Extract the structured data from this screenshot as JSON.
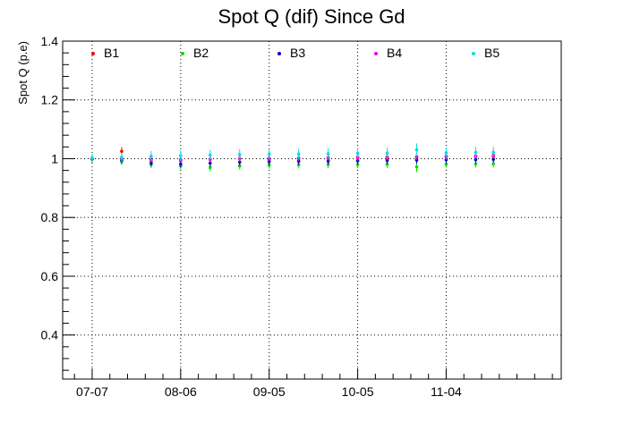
{
  "chart_data": {
    "type": "scatter",
    "title": "Spot Q (dif) Since Gd",
    "xlabel": "",
    "ylabel": "Spot Q (p.e)",
    "x_axis_kind": "date",
    "xlim": [
      "2021-06-27",
      "2021-12-13"
    ],
    "ylim": [
      0.25,
      1.4
    ],
    "x_ticks": [
      {
        "date": "2021-07-07",
        "label": "07-07"
      },
      {
        "date": "2021-08-06",
        "label": "08-06"
      },
      {
        "date": "2021-09-05",
        "label": "09-05"
      },
      {
        "date": "2021-10-05",
        "label": "10-05"
      },
      {
        "date": "2021-11-04",
        "label": "11-04"
      }
    ],
    "y_ticks": [
      {
        "value": 0.4,
        "label": "0.4"
      },
      {
        "value": 0.6,
        "label": "0.6"
      },
      {
        "value": 0.8,
        "label": "0.8"
      },
      {
        "value": 1.0,
        "label": "1"
      },
      {
        "value": 1.2,
        "label": "1.2"
      },
      {
        "value": 1.4,
        "label": "1.4"
      }
    ],
    "grid": true,
    "legend_position": "top",
    "error_bars": true,
    "series": [
      {
        "name": "B1",
        "color": "#ff0000",
        "points": [
          {
            "x": "2021-07-07",
            "y": 1.0,
            "err": 0.012
          },
          {
            "x": "2021-07-17",
            "y": 1.025,
            "err": 0.014
          },
          {
            "x": "2021-07-27",
            "y": 0.995,
            "err": 0.012
          },
          {
            "x": "2021-08-06",
            "y": 0.993,
            "err": 0.012
          },
          {
            "x": "2021-08-16",
            "y": 0.997,
            "err": 0.012
          },
          {
            "x": "2021-08-26",
            "y": 1.0,
            "err": 0.012
          },
          {
            "x": "2021-09-05",
            "y": 0.998,
            "err": 0.012
          },
          {
            "x": "2021-09-15",
            "y": 1.0,
            "err": 0.012
          },
          {
            "x": "2021-09-25",
            "y": 1.002,
            "err": 0.012
          },
          {
            "x": "2021-10-05",
            "y": 1.003,
            "err": 0.012
          },
          {
            "x": "2021-10-15",
            "y": 1.004,
            "err": 0.012
          },
          {
            "x": "2021-10-25",
            "y": 1.005,
            "err": 0.012
          },
          {
            "x": "2021-11-04",
            "y": 1.006,
            "err": 0.012
          },
          {
            "x": "2021-11-14",
            "y": 1.007,
            "err": 0.012
          },
          {
            "x": "2021-11-20",
            "y": 1.008,
            "err": 0.012
          }
        ]
      },
      {
        "name": "B2",
        "color": "#00dd00",
        "points": [
          {
            "x": "2021-07-07",
            "y": 0.998,
            "err": 0.012
          },
          {
            "x": "2021-07-17",
            "y": 0.99,
            "err": 0.012
          },
          {
            "x": "2021-07-27",
            "y": 0.98,
            "err": 0.012
          },
          {
            "x": "2021-08-06",
            "y": 0.975,
            "err": 0.012
          },
          {
            "x": "2021-08-16",
            "y": 0.97,
            "err": 0.013
          },
          {
            "x": "2021-08-26",
            "y": 0.975,
            "err": 0.012
          },
          {
            "x": "2021-09-05",
            "y": 0.978,
            "err": 0.012
          },
          {
            "x": "2021-09-15",
            "y": 0.979,
            "err": 0.012
          },
          {
            "x": "2021-09-25",
            "y": 0.98,
            "err": 0.012
          },
          {
            "x": "2021-10-05",
            "y": 0.98,
            "err": 0.012
          },
          {
            "x": "2021-10-15",
            "y": 0.981,
            "err": 0.012
          },
          {
            "x": "2021-10-25",
            "y": 0.972,
            "err": 0.018
          },
          {
            "x": "2021-11-04",
            "y": 0.981,
            "err": 0.012
          },
          {
            "x": "2021-11-14",
            "y": 0.982,
            "err": 0.012
          },
          {
            "x": "2021-11-20",
            "y": 0.982,
            "err": 0.012
          }
        ]
      },
      {
        "name": "B3",
        "color": "#0000cc",
        "points": [
          {
            "x": "2021-07-07",
            "y": 0.999,
            "err": 0.012
          },
          {
            "x": "2021-07-17",
            "y": 0.995,
            "err": 0.012
          },
          {
            "x": "2021-07-27",
            "y": 0.986,
            "err": 0.012
          },
          {
            "x": "2021-08-06",
            "y": 0.982,
            "err": 0.012
          },
          {
            "x": "2021-08-16",
            "y": 0.985,
            "err": 0.012
          },
          {
            "x": "2021-08-26",
            "y": 0.988,
            "err": 0.012
          },
          {
            "x": "2021-09-05",
            "y": 0.99,
            "err": 0.012
          },
          {
            "x": "2021-09-15",
            "y": 0.991,
            "err": 0.012
          },
          {
            "x": "2021-09-25",
            "y": 0.992,
            "err": 0.012
          },
          {
            "x": "2021-10-05",
            "y": 0.993,
            "err": 0.012
          },
          {
            "x": "2021-10-15",
            "y": 0.994,
            "err": 0.012
          },
          {
            "x": "2021-10-25",
            "y": 0.995,
            "err": 0.012
          },
          {
            "x": "2021-11-04",
            "y": 0.996,
            "err": 0.012
          },
          {
            "x": "2021-11-14",
            "y": 0.997,
            "err": 0.012
          },
          {
            "x": "2021-11-20",
            "y": 0.998,
            "err": 0.012
          }
        ]
      },
      {
        "name": "B4",
        "color": "#ee00ee",
        "points": [
          {
            "x": "2021-07-07",
            "y": 1.001,
            "err": 0.012
          },
          {
            "x": "2021-07-17",
            "y": 1.0,
            "err": 0.012
          },
          {
            "x": "2021-07-27",
            "y": 0.998,
            "err": 0.012
          },
          {
            "x": "2021-08-06",
            "y": 0.997,
            "err": 0.012
          },
          {
            "x": "2021-08-16",
            "y": 0.998,
            "err": 0.012
          },
          {
            "x": "2021-08-26",
            "y": 1.0,
            "err": 0.012
          },
          {
            "x": "2021-09-05",
            "y": 1.001,
            "err": 0.012
          },
          {
            "x": "2021-09-15",
            "y": 1.002,
            "err": 0.012
          },
          {
            "x": "2021-09-25",
            "y": 1.004,
            "err": 0.012
          },
          {
            "x": "2021-10-05",
            "y": 1.005,
            "err": 0.012
          },
          {
            "x": "2021-10-15",
            "y": 1.006,
            "err": 0.012
          },
          {
            "x": "2021-10-25",
            "y": 1.007,
            "err": 0.012
          },
          {
            "x": "2021-11-04",
            "y": 1.008,
            "err": 0.012
          },
          {
            "x": "2021-11-14",
            "y": 1.009,
            "err": 0.012
          },
          {
            "x": "2021-11-20",
            "y": 1.012,
            "err": 0.012
          }
        ]
      },
      {
        "name": "B5",
        "color": "#00dddd",
        "points": [
          {
            "x": "2021-07-07",
            "y": 1.002,
            "err": 0.014
          },
          {
            "x": "2021-07-17",
            "y": 1.005,
            "err": 0.016
          },
          {
            "x": "2021-07-27",
            "y": 1.008,
            "err": 0.018
          },
          {
            "x": "2021-08-06",
            "y": 1.01,
            "err": 0.018
          },
          {
            "x": "2021-08-16",
            "y": 1.012,
            "err": 0.018
          },
          {
            "x": "2021-08-26",
            "y": 1.014,
            "err": 0.018
          },
          {
            "x": "2021-09-05",
            "y": 1.015,
            "err": 0.018
          },
          {
            "x": "2021-09-15",
            "y": 1.016,
            "err": 0.018
          },
          {
            "x": "2021-09-25",
            "y": 1.017,
            "err": 0.018
          },
          {
            "x": "2021-10-05",
            "y": 1.018,
            "err": 0.018
          },
          {
            "x": "2021-10-15",
            "y": 1.019,
            "err": 0.018
          },
          {
            "x": "2021-10-25",
            "y": 1.03,
            "err": 0.022
          },
          {
            "x": "2021-11-04",
            "y": 1.02,
            "err": 0.018
          },
          {
            "x": "2021-11-14",
            "y": 1.021,
            "err": 0.018
          },
          {
            "x": "2021-11-20",
            "y": 1.022,
            "err": 0.018
          }
        ]
      }
    ]
  }
}
